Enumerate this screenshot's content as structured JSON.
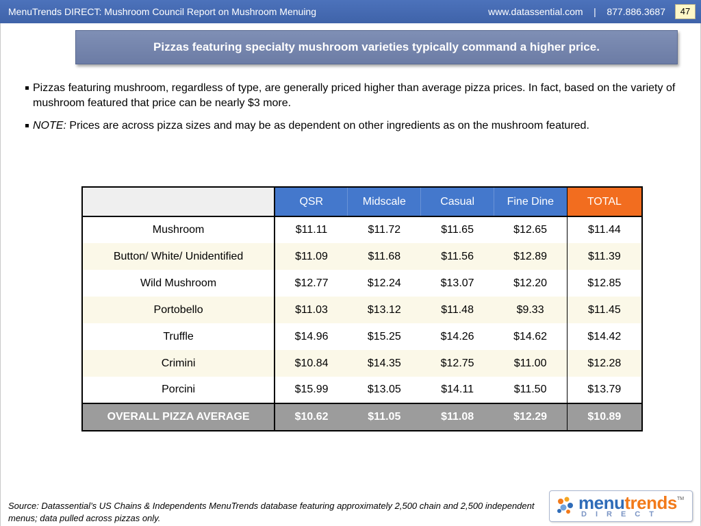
{
  "header": {
    "title": "MenuTrends DIRECT: Mushroom Council Report on Mushroom Menuing",
    "website": "www.datassential.com",
    "separator": "|",
    "phone": "877.886.3687",
    "page_number": "47"
  },
  "banner": {
    "text": "Pizzas featuring specialty mushroom varieties typically command a higher price."
  },
  "bullets": [
    {
      "lead": "",
      "text": "Pizzas featuring mushroom, regardless of type, are generally priced higher than average pizza prices.  In fact, based on the variety of mushroom featured that price can be nearly $3 more."
    },
    {
      "lead": "NOTE:",
      "text": "Prices are across pizza sizes and may be as dependent on other ingredients as on the mushroom featured."
    }
  ],
  "table": {
    "columns": [
      "QSR",
      "Midscale",
      "Casual",
      "Fine Dine",
      "TOTAL"
    ],
    "rows": [
      {
        "label": "Mushroom",
        "values": [
          "$11.11",
          "$11.72",
          "$11.65",
          "$12.65",
          "$11.44"
        ]
      },
      {
        "label": "Button/ White/ Unidentified",
        "values": [
          "$11.09",
          "$11.68",
          "$11.56",
          "$12.89",
          "$11.39"
        ]
      },
      {
        "label": "Wild Mushroom",
        "values": [
          "$12.77",
          "$12.24",
          "$13.07",
          "$12.20",
          "$12.85"
        ]
      },
      {
        "label": "Portobello",
        "values": [
          "$11.03",
          "$13.12",
          "$11.48",
          "$9.33",
          "$11.45"
        ]
      },
      {
        "label": "Truffle",
        "values": [
          "$14.96",
          "$15.25",
          "$14.26",
          "$14.62",
          "$14.42"
        ]
      },
      {
        "label": "Crimini",
        "values": [
          "$10.84",
          "$14.35",
          "$12.75",
          "$11.00",
          "$12.28"
        ]
      },
      {
        "label": "Porcini",
        "values": [
          "$15.99",
          "$13.05",
          "$14.11",
          "$11.50",
          "$13.79"
        ]
      }
    ],
    "footer": {
      "label": "OVERALL PIZZA AVERAGE",
      "values": [
        "$10.62",
        "$11.05",
        "$11.08",
        "$12.29",
        "$10.89"
      ]
    }
  },
  "source": "Source: Datassential’s US Chains & Independents MenuTrends database featuring approximately 2,500 chain and 2,500 independent menus; data pulled across pizzas only.",
  "logo": {
    "word_part1": "menu",
    "word_part2": "trends",
    "trademark": "TM",
    "subtitle": "DIRECT"
  },
  "colors": {
    "header_bar": "#4c72bb",
    "banner": "#7f8fb5",
    "column_header": "#4478cc",
    "total_header": "#f26d1f",
    "alt_row": "#fbf8e8",
    "footer_row": "#9c9c9c"
  }
}
